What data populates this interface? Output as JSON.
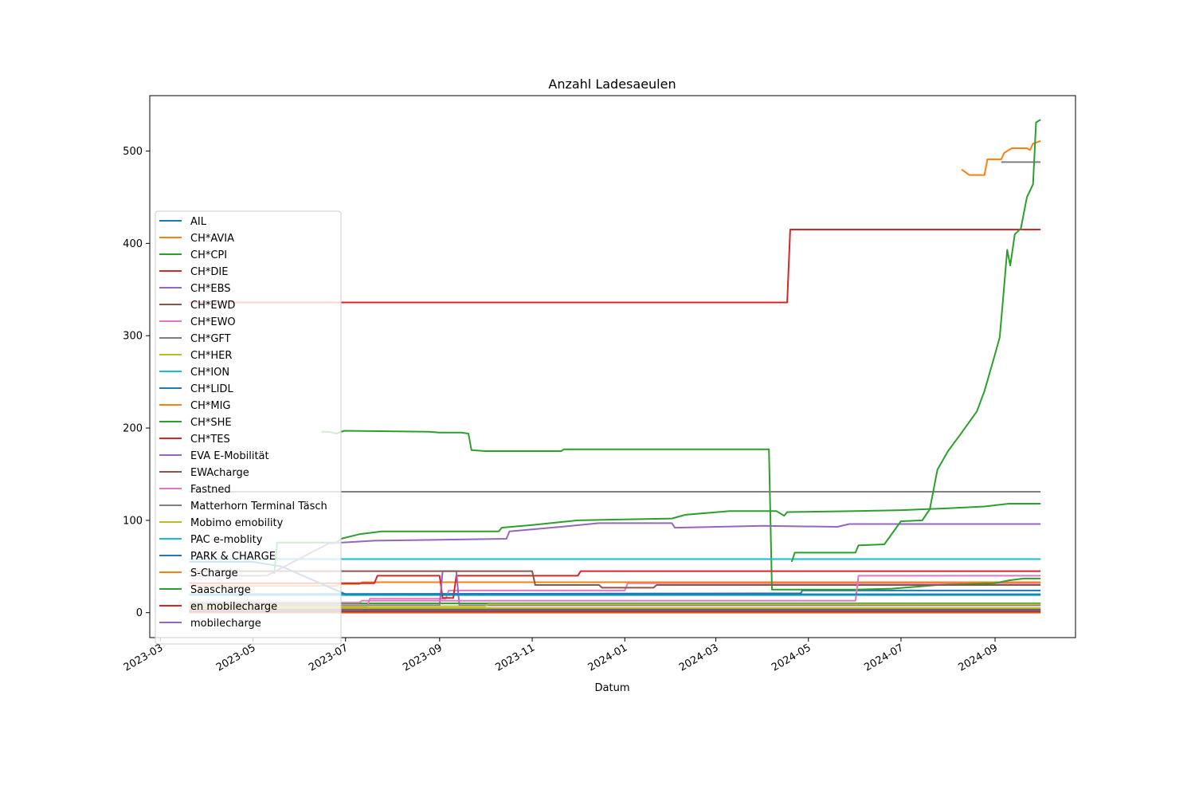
{
  "chart_data": {
    "type": "line",
    "title": "Anzahl Ladesaeulen",
    "xlabel": "Datum",
    "ylabel": "",
    "x_axis": "date",
    "xlim": [
      "2023-02-22",
      "2024-10-24"
    ],
    "ylim": [
      -27,
      560
    ],
    "xticks": [
      "2023-03",
      "2023-05",
      "2023-07",
      "2023-09",
      "2023-11",
      "2024-01",
      "2024-03",
      "2024-05",
      "2024-07",
      "2024-09"
    ],
    "yticks": [
      0,
      100,
      200,
      300,
      400,
      500
    ],
    "grid": false,
    "legend_position": "center-left",
    "series": [
      {
        "name": "AIL",
        "color": "#1f77b4",
        "points": [
          [
            "2023-03-20",
            20
          ],
          [
            "2024-04-26",
            21
          ],
          [
            "2024-04-27",
            24
          ],
          [
            "2024-10-01",
            24
          ]
        ]
      },
      {
        "name": "CH*AVIA",
        "color": "#ff7f0e",
        "points": [
          [
            "2023-03-20",
            0
          ],
          [
            "2024-10-01",
            0
          ]
        ]
      },
      {
        "name": "CH*CPI",
        "color": "#2ca02c",
        "points": [
          [
            "2023-03-20",
            10
          ],
          [
            "2024-10-01",
            10
          ]
        ]
      },
      {
        "name": "CH*DIE",
        "color": "#d62728",
        "points": [
          [
            "2023-03-20",
            336
          ],
          [
            "2024-04-17",
            336
          ],
          [
            "2024-04-19",
            415
          ],
          [
            "2024-10-01",
            415
          ]
        ]
      },
      {
        "name": "CH*EBS",
        "color": "#9467bd",
        "points": [
          [
            "2023-03-20",
            3
          ],
          [
            "2024-10-01",
            3
          ]
        ]
      },
      {
        "name": "CH*EWD",
        "color": "#8c564b",
        "points": [
          [
            "2023-03-20",
            4
          ],
          [
            "2024-10-01",
            4
          ]
        ]
      },
      {
        "name": "CH*EWO",
        "color": "#e377c2",
        "points": [
          [
            "2023-03-20",
            6
          ],
          [
            "2023-07-15",
            6
          ],
          [
            "2023-07-17",
            15
          ],
          [
            "2023-09-05",
            15
          ],
          [
            "2023-09-07",
            24
          ],
          [
            "2024-01-01",
            24
          ],
          [
            "2024-01-03",
            32
          ],
          [
            "2024-10-01",
            32
          ]
        ]
      },
      {
        "name": "CH*GFT",
        "color": "#7f7f7f",
        "points": [
          [
            "2024-09-05",
            488
          ],
          [
            "2024-10-01",
            488
          ]
        ]
      },
      {
        "name": "CH*HER",
        "color": "#bcbd22",
        "points": [
          [
            "2023-03-20",
            5
          ],
          [
            "2024-10-01",
            5
          ]
        ]
      },
      {
        "name": "CH*ION",
        "color": "#17becf",
        "points": [
          [
            "2023-03-20",
            19
          ],
          [
            "2024-10-01",
            19
          ]
        ]
      },
      {
        "name": "CH*LIDL",
        "color": "#1f77b4",
        "points": [
          [
            "2023-03-20",
            2
          ],
          [
            "2024-10-01",
            2
          ]
        ]
      },
      {
        "name": "CH*MIG",
        "color": "#ff7f0e",
        "points": [
          [
            "2023-03-20",
            29
          ],
          [
            "2023-06-25",
            29
          ],
          [
            "2023-06-27",
            31
          ],
          [
            "2023-07-10",
            31
          ],
          [
            "2023-07-12",
            33
          ],
          [
            "2024-10-01",
            33
          ]
        ]
      },
      {
        "name": "CH*SHE",
        "color": "#2ca02c",
        "points": [
          [
            "2023-06-15",
            196
          ],
          [
            "2023-06-20",
            196
          ],
          [
            "2023-06-25",
            194
          ],
          [
            "2023-06-30",
            197
          ],
          [
            "2023-08-25",
            196
          ],
          [
            "2023-09-01",
            195
          ],
          [
            "2023-09-15",
            195
          ],
          [
            "2023-09-20",
            194
          ],
          [
            "2023-09-22",
            176
          ],
          [
            "2023-10-01",
            175
          ],
          [
            "2023-11-20",
            175
          ],
          [
            "2023-11-22",
            177
          ],
          [
            "2024-03-01",
            177
          ],
          [
            "2024-04-05",
            177
          ],
          [
            "2024-04-07",
            25
          ],
          [
            "2024-05-01",
            25
          ],
          [
            "2024-06-01",
            25
          ],
          [
            "2024-06-25",
            26
          ],
          [
            "2024-07-25",
            30
          ],
          [
            "2024-09-01",
            32
          ],
          [
            "2024-09-10",
            35
          ],
          [
            "2024-09-20",
            37
          ],
          [
            "2024-10-01",
            37
          ]
        ]
      },
      {
        "name": "CH*TES",
        "color": "#d62728",
        "points": [
          [
            "2023-03-20",
            32
          ],
          [
            "2023-07-20",
            32
          ],
          [
            "2023-07-22",
            40
          ],
          [
            "2023-09-01",
            40
          ],
          [
            "2023-09-03",
            16
          ],
          [
            "2023-09-10",
            16
          ],
          [
            "2023-09-12",
            40
          ],
          [
            "2023-12-01",
            40
          ],
          [
            "2023-12-03",
            45
          ],
          [
            "2024-10-01",
            45
          ]
        ]
      },
      {
        "name": "EVA E-Mobilität",
        "color": "#9467bd",
        "points": [
          [
            "2023-03-20",
            8
          ],
          [
            "2023-09-01",
            8
          ],
          [
            "2023-09-03",
            45
          ],
          [
            "2023-09-12",
            45
          ],
          [
            "2023-09-14",
            8
          ],
          [
            "2024-10-01",
            8
          ]
        ]
      },
      {
        "name": "EWAcharge",
        "color": "#8c564b",
        "points": [
          [
            "2023-03-20",
            45
          ],
          [
            "2023-11-01",
            45
          ],
          [
            "2023-11-03",
            30
          ],
          [
            "2023-12-15",
            30
          ],
          [
            "2023-12-17",
            27
          ],
          [
            "2024-01-20",
            27
          ],
          [
            "2024-01-22",
            30
          ],
          [
            "2024-10-01",
            30
          ]
        ]
      },
      {
        "name": "Fastned",
        "color": "#e377c2",
        "points": [
          [
            "2023-03-20",
            11
          ],
          [
            "2023-07-10",
            11
          ],
          [
            "2023-07-12",
            13
          ],
          [
            "2024-06-01",
            13
          ],
          [
            "2024-06-03",
            40
          ],
          [
            "2024-10-01",
            40
          ]
        ]
      },
      {
        "name": "Matterhorn Terminal Täsch",
        "color": "#7f7f7f",
        "points": [
          [
            "2023-03-20",
            131
          ],
          [
            "2024-10-01",
            131
          ]
        ]
      },
      {
        "name": "Mobimo emobility",
        "color": "#bcbd22",
        "points": [
          [
            "2023-03-20",
            7
          ],
          [
            "2023-10-01",
            7
          ],
          [
            "2023-10-03",
            9
          ],
          [
            "2024-10-01",
            9
          ]
        ]
      },
      {
        "name": "PAC e-moblity",
        "color": "#17becf",
        "points": [
          [
            "2023-03-20",
            58
          ],
          [
            "2024-10-01",
            58
          ]
        ]
      },
      {
        "name": "PARK & CHARGE",
        "color": "#1f77b4",
        "points": [
          [
            "2023-03-20",
            55
          ],
          [
            "2023-05-01",
            55
          ],
          [
            "2023-05-20",
            50
          ],
          [
            "2023-07-01",
            20
          ],
          [
            "2024-10-01",
            20
          ]
        ]
      },
      {
        "name": "S-Charge",
        "color": "#ff7f0e",
        "points": [
          [
            "2024-08-10",
            480
          ],
          [
            "2024-08-15",
            474
          ],
          [
            "2024-08-25",
            474
          ],
          [
            "2024-08-27",
            491
          ],
          [
            "2024-09-05",
            491
          ],
          [
            "2024-09-07",
            498
          ],
          [
            "2024-09-12",
            503
          ],
          [
            "2024-09-22",
            503
          ],
          [
            "2024-09-24",
            501
          ],
          [
            "2024-09-26",
            508
          ],
          [
            "2024-10-01",
            511
          ]
        ]
      },
      {
        "name": "Saascharge",
        "color": "#2ca02c",
        "points": [
          [
            "2023-05-15",
            42
          ],
          [
            "2023-05-17",
            76
          ],
          [
            "2023-06-25",
            76
          ],
          [
            "2023-06-28",
            80
          ],
          [
            "2023-07-10",
            85
          ],
          [
            "2023-07-25",
            88
          ],
          [
            "2023-10-10",
            88
          ],
          [
            "2023-10-12",
            92
          ],
          [
            "2023-11-01",
            95
          ],
          [
            "2023-12-01",
            100
          ],
          [
            "2024-02-01",
            102
          ],
          [
            "2024-02-10",
            106
          ],
          [
            "2024-03-10",
            110
          ],
          [
            "2024-04-10",
            110
          ],
          [
            "2024-04-15",
            105
          ],
          [
            "2024-04-17",
            109
          ],
          [
            "2024-06-01",
            110
          ],
          [
            "2024-07-01",
            111
          ],
          [
            "2024-08-01",
            113
          ],
          [
            "2024-08-25",
            115
          ],
          [
            "2024-09-10",
            118
          ],
          [
            "2024-10-01",
            118
          ]
        ]
      },
      {
        "name": "en mobilecharge",
        "color": "#d62728",
        "points": [
          [
            "2023-03-20",
            1
          ],
          [
            "2024-10-01",
            1
          ]
        ]
      },
      {
        "name": "mobilecharge",
        "color": "#9467bd",
        "points": [
          [
            "2023-03-20",
            40
          ],
          [
            "2023-05-10",
            40
          ],
          [
            "2023-06-20",
            75
          ],
          [
            "2023-07-20",
            78
          ],
          [
            "2023-09-01",
            79
          ],
          [
            "2023-10-15",
            80
          ],
          [
            "2023-10-17",
            88
          ],
          [
            "2023-11-20",
            93
          ],
          [
            "2023-12-15",
            97
          ],
          [
            "2024-02-01",
            97
          ],
          [
            "2024-02-03",
            92
          ],
          [
            "2024-04-01",
            94
          ],
          [
            "2024-05-20",
            93
          ],
          [
            "2024-05-28",
            96
          ],
          [
            "2024-10-01",
            96
          ]
        ]
      },
      {
        "name": "",
        "color": "#2ca02c",
        "points": [
          [
            "2024-04-20",
            55
          ],
          [
            "2024-04-22",
            65
          ],
          [
            "2024-06-01",
            65
          ],
          [
            "2024-06-03",
            73
          ],
          [
            "2024-06-20",
            74
          ],
          [
            "2024-07-01",
            99
          ],
          [
            "2024-07-15",
            100
          ],
          [
            "2024-07-20",
            112
          ],
          [
            "2024-07-25",
            155
          ],
          [
            "2024-08-01",
            175
          ],
          [
            "2024-08-10",
            195
          ],
          [
            "2024-08-20",
            218
          ],
          [
            "2024-08-25",
            240
          ],
          [
            "2024-09-01",
            280
          ],
          [
            "2024-09-04",
            298
          ],
          [
            "2024-09-06",
            335
          ],
          [
            "2024-09-09",
            393
          ],
          [
            "2024-09-11",
            376
          ],
          [
            "2024-09-14",
            410
          ],
          [
            "2024-09-18",
            416
          ],
          [
            "2024-09-22",
            450
          ],
          [
            "2024-09-26",
            464
          ],
          [
            "2024-09-28",
            531
          ],
          [
            "2024-10-01",
            534
          ]
        ]
      }
    ]
  }
}
